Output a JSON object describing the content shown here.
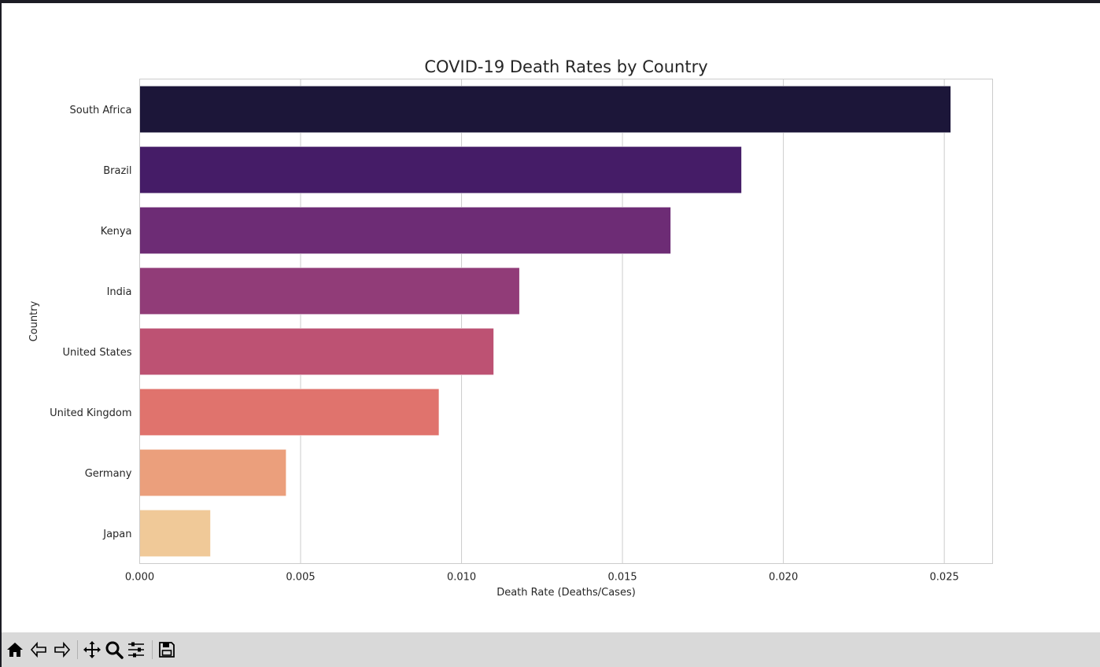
{
  "window": {
    "toolbar": {
      "buttons": [
        {
          "name": "home-button",
          "icon": "home-icon"
        },
        {
          "name": "back-button",
          "icon": "back-arrow-icon"
        },
        {
          "name": "forward-button",
          "icon": "forward-arrow-icon"
        },
        {
          "name": "pan-button",
          "icon": "move-icon"
        },
        {
          "name": "zoom-button",
          "icon": "zoom-icon"
        },
        {
          "name": "configure-subplots-button",
          "icon": "sliders-icon"
        },
        {
          "name": "save-button",
          "icon": "save-icon"
        }
      ],
      "coordinate_readout": ""
    }
  },
  "chart_data": {
    "type": "bar",
    "orientation": "horizontal",
    "title": "COVID-19 Death Rates by Country",
    "xlabel": "Death Rate (Deaths/Cases)",
    "ylabel": "Country",
    "categories": [
      "South Africa",
      "Brazil",
      "Kenya",
      "India",
      "United States",
      "United Kingdom",
      "Germany",
      "Japan"
    ],
    "values": [
      0.0252,
      0.0187,
      0.0165,
      0.0118,
      0.011,
      0.0093,
      0.00455,
      0.0022
    ],
    "colors": [
      "#1c1639",
      "#451c67",
      "#6d2c75",
      "#913c78",
      "#bd5273",
      "#e0736d",
      "#eb9f7c",
      "#f0c998"
    ],
    "xlim": [
      0,
      0.0265
    ],
    "xticks": [
      "0.000",
      "0.005",
      "0.010",
      "0.015",
      "0.020",
      "0.025"
    ],
    "xtick_values": [
      0,
      0.005,
      0.01,
      0.015,
      0.02,
      0.025
    ],
    "grid": true,
    "grid_axis": "x"
  }
}
